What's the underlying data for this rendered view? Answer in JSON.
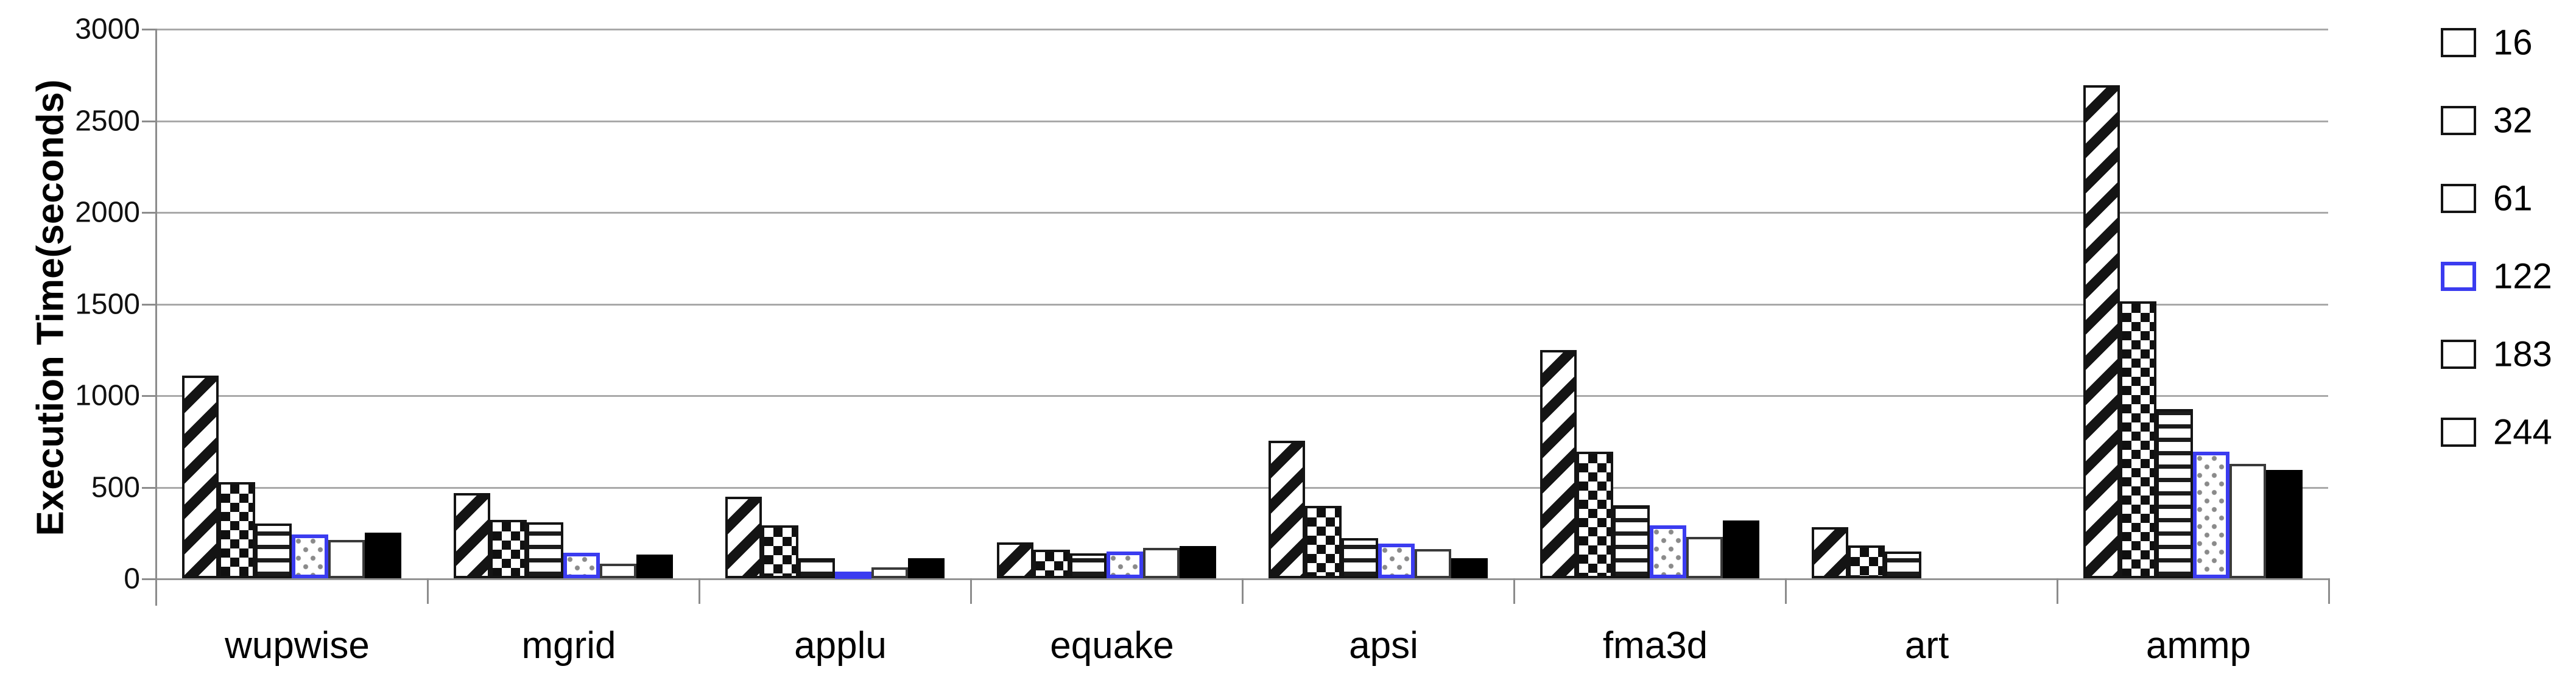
{
  "figure": {
    "background": "#ffffff",
    "gridline_color": "#a9a9a9",
    "axis_color": "#8c8c8c",
    "accent_blue": "#3b3cf0"
  },
  "chart_data": {
    "type": "bar",
    "title": "",
    "xlabel": "",
    "ylabel": "Execution Time(seconds)",
    "ylim": [
      0,
      3000
    ],
    "yticks": [
      0,
      500,
      1000,
      1500,
      2000,
      2500,
      3000
    ],
    "grid": true,
    "legend_position": "right",
    "categories": [
      "wupwise",
      "mgrid",
      "applu",
      "equake",
      "apsi",
      "fma3d",
      "art",
      "ammp"
    ],
    "series": [
      {
        "name": "16",
        "pattern": "diagonal-stripes",
        "values": [
          1105,
          465,
          445,
          195,
          750,
          1245,
          280,
          2690
        ]
      },
      {
        "name": "32",
        "pattern": "checkerboard",
        "values": [
          525,
          320,
          290,
          155,
          395,
          690,
          180,
          1510
        ]
      },
      {
        "name": "61",
        "pattern": "horizontal-stripes",
        "values": [
          300,
          305,
          110,
          135,
          220,
          400,
          145,
          925
        ]
      },
      {
        "name": "122",
        "pattern": "dotted-blue-border",
        "values": [
          240,
          140,
          35,
          145,
          190,
          290,
          0,
          690
        ]
      },
      {
        "name": "183",
        "pattern": "white",
        "values": [
          210,
          80,
          60,
          165,
          160,
          225,
          0,
          625
        ]
      },
      {
        "name": "244",
        "pattern": "solid-black",
        "values": [
          250,
          130,
          110,
          175,
          110,
          315,
          0,
          590
        ]
      }
    ]
  }
}
